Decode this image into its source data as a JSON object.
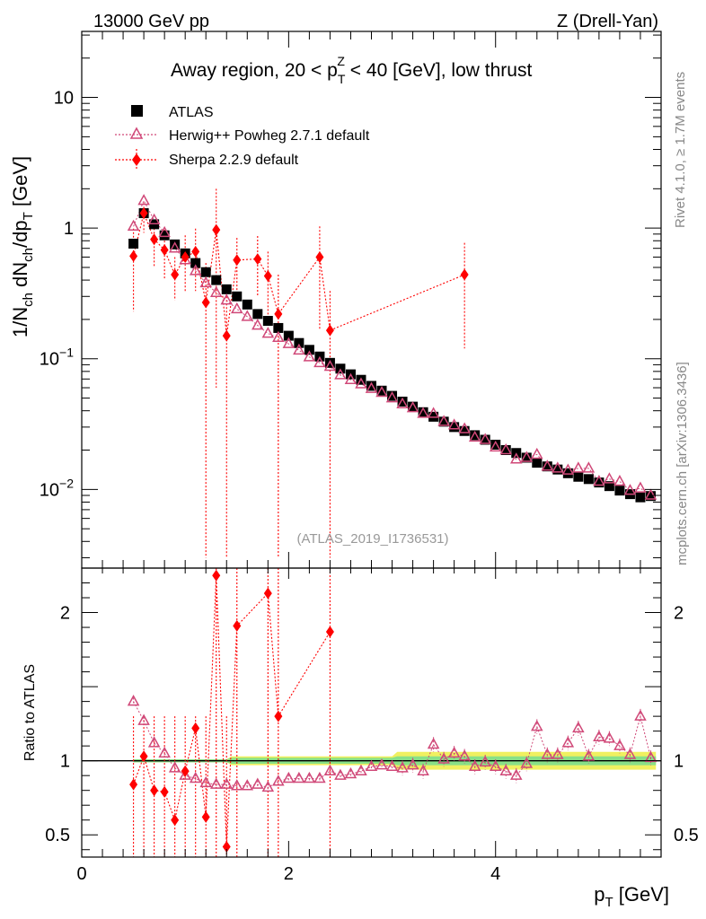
{
  "header": {
    "left": "13000 GeV pp",
    "right": "Z (Drell-Yan)"
  },
  "side": {
    "rivet": "Rivet 4.1.0, ≥ 1.7M events",
    "mcplots": "mcplots.cern.ch [arXiv:1306.3436]"
  },
  "colors": {
    "atlas": "#000000",
    "herwig": "#d04878",
    "sherpa": "#ff0000",
    "band_outer": "#f0f060",
    "band_inner": "#88e088"
  },
  "chart_data": [
    {
      "type": "scatter",
      "panel": "main",
      "title": "Away region, 20 < p_T^Z < 40 [GeV], low thrust",
      "title_parts": {
        "pre": "Away region, 20 < p",
        "sub": "T",
        "sup": "Z",
        "post": " < 40 [GeV], low thrust"
      },
      "ylabel": "1/N_ch dN_ch/dp_T [GeV]",
      "ylabel_parts": {
        "a": "1/N",
        "a_sub": "ch",
        "b": " dN",
        "b_sub": "ch",
        "c": "/dp",
        "c_sub": "T",
        "d": " [GeV]"
      },
      "yscale": "log",
      "ylim": [
        0.0025,
        32
      ],
      "xlim": [
        0,
        5.6
      ],
      "yticks": [
        {
          "value": 10,
          "label": "10"
        },
        {
          "value": 1,
          "label": "1"
        },
        {
          "value": 0.1,
          "base": "10",
          "exp": "−1"
        },
        {
          "value": 0.01,
          "base": "10",
          "exp": "−2"
        }
      ],
      "watermark": "(ATLAS_2019_I1736531)",
      "legend": [
        {
          "name": "ATLAS",
          "marker": "square"
        },
        {
          "name": "Herwig++ Powheg 2.7.1 default",
          "marker": "triangle"
        },
        {
          "name": "Sherpa 2.2.9 default",
          "marker": "diamond"
        }
      ],
      "series": [
        {
          "name": "ATLAS",
          "x": [
            0.5,
            0.6,
            0.7,
            0.8,
            0.9,
            1.0,
            1.1,
            1.2,
            1.3,
            1.4,
            1.5,
            1.6,
            1.7,
            1.8,
            1.9,
            2.0,
            2.1,
            2.2,
            2.3,
            2.4,
            2.5,
            2.6,
            2.7,
            2.8,
            2.9,
            3.0,
            3.1,
            3.2,
            3.3,
            3.4,
            3.5,
            3.6,
            3.7,
            3.8,
            3.9,
            4.0,
            4.1,
            4.2,
            4.3,
            4.4,
            4.5,
            4.6,
            4.7,
            4.8,
            4.9,
            5.0,
            5.1,
            5.2,
            5.3,
            5.4,
            5.5
          ],
          "y": [
            0.76,
            1.3,
            1.07,
            0.88,
            0.75,
            0.64,
            0.54,
            0.46,
            0.4,
            0.34,
            0.3,
            0.26,
            0.22,
            0.195,
            0.172,
            0.15,
            0.132,
            0.117,
            0.104,
            0.093,
            0.084,
            0.076,
            0.069,
            0.062,
            0.057,
            0.052,
            0.047,
            0.043,
            0.039,
            0.036,
            0.033,
            0.03,
            0.028,
            0.026,
            0.024,
            0.022,
            0.02,
            0.019,
            0.0175,
            0.016,
            0.015,
            0.0142,
            0.0133,
            0.0125,
            0.012,
            0.0113,
            0.0106,
            0.0098,
            0.0092,
            0.0087,
            0.0089
          ]
        },
        {
          "name": "Herwig++ Powheg 2.7.1 default",
          "x": [
            0.5,
            0.6,
            0.7,
            0.8,
            0.9,
            1.0,
            1.1,
            1.2,
            1.3,
            1.4,
            1.5,
            1.6,
            1.7,
            1.8,
            1.9,
            2.0,
            2.1,
            2.2,
            2.3,
            2.4,
            2.5,
            2.6,
            2.7,
            2.8,
            2.9,
            3.0,
            3.1,
            3.2,
            3.3,
            3.4,
            3.5,
            3.6,
            3.7,
            3.8,
            3.9,
            4.0,
            4.1,
            4.2,
            4.3,
            4.4,
            4.5,
            4.6,
            4.7,
            4.8,
            4.9,
            5.0,
            5.1,
            5.2,
            5.3,
            5.4,
            5.5
          ],
          "y": [
            1.03,
            1.62,
            1.15,
            0.92,
            0.7,
            0.57,
            0.47,
            0.38,
            0.32,
            0.28,
            0.24,
            0.21,
            0.18,
            0.156,
            0.145,
            0.13,
            0.116,
            0.103,
            0.093,
            0.087,
            0.075,
            0.069,
            0.064,
            0.059,
            0.055,
            0.05,
            0.045,
            0.042,
            0.038,
            0.038,
            0.033,
            0.031,
            0.029,
            0.025,
            0.024,
            0.021,
            0.02,
            0.017,
            0.0175,
            0.0185,
            0.015,
            0.0145,
            0.014,
            0.0145,
            0.0145,
            0.0115,
            0.012,
            0.0115,
            0.0098,
            0.0102,
            0.009
          ]
        },
        {
          "name": "Sherpa 2.2.9 default",
          "x": [
            0.5,
            0.6,
            0.7,
            0.8,
            0.9,
            1.0,
            1.1,
            1.2,
            1.3,
            1.4,
            1.5,
            1.7,
            1.8,
            1.9,
            2.3,
            2.4,
            3.7
          ],
          "y": [
            0.61,
            1.3,
            0.82,
            0.68,
            0.44,
            0.6,
            0.66,
            0.27,
            0.97,
            0.15,
            0.57,
            0.58,
            0.43,
            0.22,
            0.6,
            0.165,
            0.44
          ],
          "err_low": [
            0.23,
            0.92,
            0.5,
            0.4,
            0.28,
            0.32,
            0.33,
            0.003,
            0.06,
            0.003,
            0.3,
            0.3,
            0.2,
            0.003,
            0.17,
            0.003,
            0.12
          ],
          "err_high": [
            0.99,
            1.55,
            1.13,
            0.97,
            0.6,
            0.88,
            0.99,
            0.54,
            2.0,
            0.3,
            0.84,
            0.87,
            0.66,
            0.44,
            1.03,
            0.33,
            0.77
          ]
        }
      ]
    },
    {
      "type": "scatter",
      "panel": "ratio",
      "ylabel": "Ratio to ATLAS",
      "xlabel": "p_T [GeV]",
      "xlabel_parts": {
        "a": "p",
        "sub": "T",
        "b": " [GeV]"
      },
      "xlim": [
        0,
        5.6
      ],
      "ylim": [
        0.35,
        2.3
      ],
      "xticks": [
        {
          "value": 0,
          "label": "0"
        },
        {
          "value": 2,
          "label": "2"
        },
        {
          "value": 4,
          "label": "4"
        }
      ],
      "yticks": [
        {
          "value": 2,
          "label": "2"
        },
        {
          "value": 1,
          "label": "1"
        },
        {
          "value": 0.5,
          "label": "0.5"
        }
      ],
      "band_halfwidth": {
        "x": [
          0.5,
          1.4,
          1.45,
          3.0,
          3.05,
          5.55
        ],
        "inner": [
          0.01,
          0.01,
          0.02,
          0.02,
          0.03,
          0.03
        ],
        "outer": [
          0.01,
          0.01,
          0.03,
          0.03,
          0.06,
          0.06
        ]
      },
      "series": [
        {
          "name": "Herwig++ Powheg 2.7.1 default",
          "x": [
            0.5,
            0.6,
            0.7,
            0.8,
            0.9,
            1.0,
            1.1,
            1.2,
            1.3,
            1.4,
            1.5,
            1.6,
            1.7,
            1.8,
            1.9,
            2.0,
            2.1,
            2.2,
            2.3,
            2.4,
            2.5,
            2.6,
            2.7,
            2.8,
            2.9,
            3.0,
            3.1,
            3.2,
            3.3,
            3.4,
            3.5,
            3.6,
            3.7,
            3.8,
            3.9,
            4.0,
            4.1,
            4.2,
            4.3,
            4.4,
            4.5,
            4.6,
            4.7,
            4.8,
            4.9,
            5.0,
            5.1,
            5.2,
            5.3,
            5.4,
            5.5
          ],
          "y": [
            1.4,
            1.27,
            1.12,
            1.05,
            0.95,
            0.9,
            0.88,
            0.85,
            0.84,
            0.84,
            0.83,
            0.83,
            0.84,
            0.82,
            0.86,
            0.88,
            0.88,
            0.88,
            0.88,
            0.93,
            0.9,
            0.91,
            0.93,
            0.96,
            0.97,
            0.96,
            0.95,
            0.97,
            0.93,
            1.11,
            1.01,
            1.05,
            1.03,
            0.96,
            0.99,
            0.96,
            0.93,
            0.9,
            0.98,
            1.23,
            1.04,
            1.04,
            1.12,
            1.22,
            1.03,
            1.16,
            1.15,
            1.1,
            1.04,
            1.3,
            1.02
          ]
        },
        {
          "name": "Sherpa 2.2.9 default",
          "x": [
            0.5,
            0.6,
            0.7,
            0.8,
            0.9,
            1.0,
            1.1,
            1.2,
            1.3,
            1.4,
            1.5,
            1.8,
            1.9,
            2.4
          ],
          "y": [
            0.84,
            1.03,
            0.8,
            0.79,
            0.6,
            0.93,
            1.22,
            0.62,
            2.25,
            0.42,
            1.91,
            2.13,
            1.3,
            1.87
          ],
          "err_low": [
            0.3,
            0.3,
            0.3,
            0.3,
            0.3,
            0.3,
            0.3,
            0.3,
            0.3,
            0.3,
            0.3,
            0.3,
            0.3,
            0.3
          ],
          "err_high": [
            1.3,
            1.3,
            1.3,
            1.3,
            1.3,
            1.3,
            1.3,
            1.3,
            2.5,
            1.3,
            2.5,
            2.5,
            2.5,
            2.5
          ]
        }
      ]
    }
  ]
}
